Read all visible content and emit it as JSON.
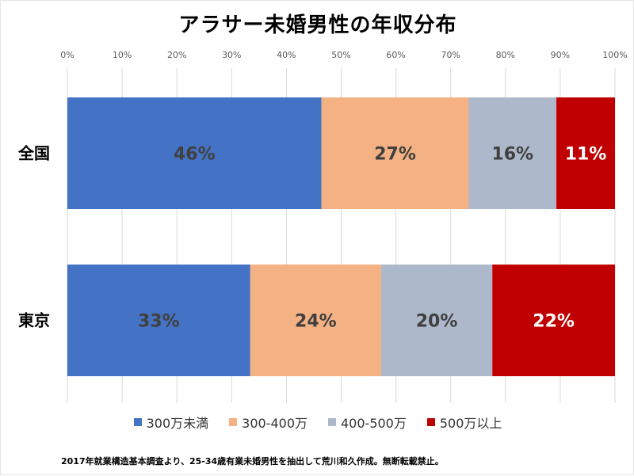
{
  "title": "アラサー未婚男性の年収分布",
  "footnote": "2017年就業構造基本調査より、25-34歳有業未婚男性を抽出して荒川和久作成。無断転載禁止。",
  "chart_data": {
    "type": "bar",
    "orientation": "horizontal",
    "stacked": "percent",
    "title": "アラサー未婚男性の年収分布",
    "categories": [
      "全国",
      "東京"
    ],
    "series": [
      {
        "name": "300万未満",
        "values": [
          46.4,
          33.4
        ],
        "labels": [
          "46%",
          "33%"
        ],
        "color": "#4472C4",
        "label_color": "#404040"
      },
      {
        "name": "300-400万",
        "values": [
          26.9,
          23.9
        ],
        "labels": [
          "27%",
          "24%"
        ],
        "color": "#F4B183",
        "label_color": "#404040"
      },
      {
        "name": "400-500万",
        "values": [
          16.0,
          20.3
        ],
        "labels": [
          "16%",
          "20%"
        ],
        "color": "#ADB9CA",
        "label_color": "#404040"
      },
      {
        "name": "500万以上",
        "values": [
          10.7,
          22.4
        ],
        "labels": [
          "11%",
          "22%"
        ],
        "color": "#C00000",
        "label_color": "#ffffff"
      }
    ],
    "xlim": [
      0,
      100
    ],
    "xticks": [
      "0%",
      "10%",
      "20%",
      "30%",
      "40%",
      "50%",
      "60%",
      "70%",
      "80%",
      "90%",
      "100%"
    ],
    "grid": true,
    "legend_position": "bottom"
  }
}
